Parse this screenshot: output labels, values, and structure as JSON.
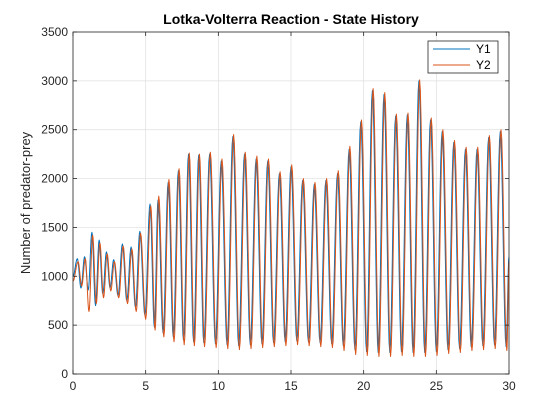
{
  "chart_data": {
    "type": "line",
    "title": "Lotka-Volterra Reaction - State History",
    "xlabel": "",
    "ylabel": "Number of predator-prey",
    "xlim": [
      0,
      30
    ],
    "ylim": [
      0,
      3500
    ],
    "xticks": [
      "0",
      "5",
      "10",
      "15",
      "20",
      "25",
      "30"
    ],
    "yticks": [
      "0",
      "500",
      "1000",
      "1500",
      "2000",
      "2500",
      "3000",
      "3500"
    ],
    "grid": true,
    "legend_position": "top-right",
    "series": [
      {
        "name": "Y1",
        "color": "#0072BD",
        "x": [
          0.0,
          0.3,
          0.55,
          0.8,
          1.05,
          1.3,
          1.55,
          1.8,
          2.05,
          2.3,
          2.55,
          2.8,
          3.1,
          3.4,
          3.7,
          4.0,
          4.3,
          4.6,
          4.95,
          5.3,
          5.6,
          5.85,
          6.2,
          6.55,
          6.9,
          7.25,
          7.6,
          7.95,
          8.3,
          8.65,
          9.0,
          9.4,
          9.8,
          10.2,
          10.6,
          11.0,
          11.4,
          11.8,
          12.2,
          12.6,
          13.0,
          13.4,
          13.8,
          14.2,
          14.6,
          15.0,
          15.4,
          15.8,
          16.2,
          16.6,
          17.0,
          17.4,
          17.8,
          18.2,
          18.6,
          19.0,
          19.4,
          19.8,
          20.2,
          20.6,
          21.0,
          21.4,
          21.8,
          22.2,
          22.6,
          23.0,
          23.4,
          23.8,
          24.2,
          24.6,
          25.0,
          25.4,
          25.8,
          26.2,
          26.6,
          27.0,
          27.4,
          27.8,
          28.2,
          28.6,
          29.0,
          29.4,
          29.8,
          30.0
        ],
        "y": [
          1000,
          1180,
          880,
          1200,
          860,
          1450,
          700,
          1370,
          820,
          1250,
          880,
          1170,
          800,
          1330,
          750,
          1300,
          680,
          1460,
          600,
          1740,
          480,
          1780,
          420,
          1960,
          380,
          2080,
          350,
          2250,
          330,
          2240,
          320,
          2250,
          310,
          2180,
          300,
          2430,
          290,
          2250,
          300,
          2200,
          310,
          2180,
          320,
          2050,
          330,
          2120,
          340,
          1980,
          330,
          1940,
          320,
          1980,
          310,
          2050,
          290,
          2300,
          250,
          2580,
          230,
          2900,
          220,
          2860,
          220,
          2640,
          230,
          2650,
          220,
          3000,
          220,
          2600,
          230,
          2480,
          250,
          2370,
          260,
          2300,
          280,
          2300,
          290,
          2420,
          300,
          2480,
          280,
          1200
        ]
      },
      {
        "name": "Y2",
        "color": "#D95319",
        "x": [
          0.0,
          0.35,
          0.6,
          0.85,
          1.1,
          1.35,
          1.6,
          1.85,
          2.1,
          2.35,
          2.6,
          2.85,
          3.15,
          3.45,
          3.75,
          4.05,
          4.35,
          4.65,
          5.0,
          5.35,
          5.65,
          5.9,
          6.25,
          6.6,
          6.95,
          7.3,
          7.65,
          8.0,
          8.35,
          8.7,
          9.05,
          9.45,
          9.85,
          10.25,
          10.65,
          11.05,
          11.45,
          11.85,
          12.25,
          12.65,
          13.05,
          13.45,
          13.85,
          14.25,
          14.65,
          15.05,
          15.45,
          15.85,
          16.25,
          16.65,
          17.05,
          17.45,
          17.85,
          18.25,
          18.65,
          19.05,
          19.45,
          19.85,
          20.25,
          20.65,
          21.05,
          21.45,
          21.85,
          22.25,
          22.65,
          23.05,
          23.45,
          23.85,
          24.25,
          24.65,
          25.05,
          25.45,
          25.85,
          26.25,
          26.65,
          27.05,
          27.45,
          27.85,
          28.25,
          28.65,
          29.05,
          29.45,
          29.85,
          30.0
        ],
        "y": [
          950,
          1150,
          900,
          1180,
          640,
          1420,
          720,
          1340,
          780,
          1230,
          850,
          1150,
          780,
          1310,
          720,
          1280,
          640,
          1440,
          560,
          1720,
          450,
          1820,
          380,
          1990,
          330,
          2100,
          300,
          2260,
          290,
          2250,
          280,
          2270,
          270,
          2200,
          260,
          2450,
          250,
          2270,
          260,
          2230,
          270,
          2200,
          280,
          2070,
          290,
          2140,
          300,
          2000,
          290,
          1960,
          280,
          2000,
          270,
          2080,
          240,
          2330,
          200,
          2600,
          190,
          2920,
          180,
          2880,
          180,
          2660,
          190,
          2670,
          180,
          3010,
          180,
          2620,
          190,
          2500,
          210,
          2390,
          220,
          2320,
          240,
          2320,
          250,
          2440,
          260,
          2500,
          240,
          1150
        ]
      }
    ]
  }
}
